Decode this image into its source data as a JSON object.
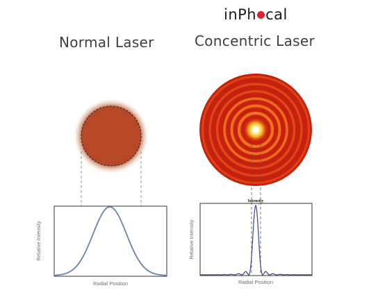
{
  "brand": {
    "prefix": "inPh",
    "suffix": "cal",
    "dot_color": "#d7262e"
  },
  "normal": {
    "title": "Normal Laser",
    "ylabel": "Relative Intensity",
    "xlabel": "Radial Position",
    "curve_color": "#6a80b3",
    "spot_color": "#b8482a"
  },
  "concentric": {
    "title": "Concentric Laser",
    "ylabel": "Relative Intensity",
    "xlabel": "Radial Position",
    "peak_label": "Intensity",
    "curve_color": "#3a3f8f",
    "ring_color": "#c22a12",
    "ring_count": 6
  }
}
